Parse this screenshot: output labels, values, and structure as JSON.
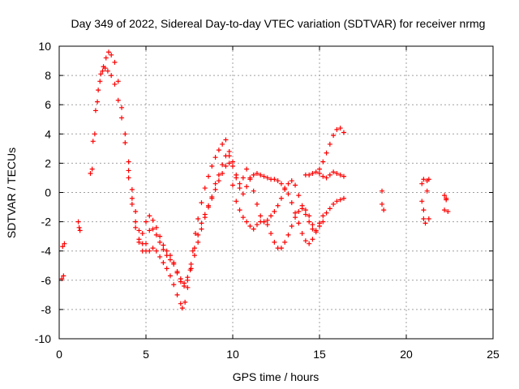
{
  "chart_data": {
    "type": "scatter",
    "title": "Day 349 of 2022, Sidereal Day-to-day VTEC variation (SDTVAR) for receiver nrmg",
    "xlabel": "GPS time / hours",
    "ylabel": "SDTVAR / TECUs",
    "xlim": [
      0,
      25
    ],
    "ylim": [
      -10,
      10
    ],
    "x_ticks": [
      0,
      5,
      10,
      15,
      20,
      25
    ],
    "y_ticks": [
      -10,
      -8,
      -6,
      -4,
      -2,
      0,
      2,
      4,
      6,
      8,
      10
    ],
    "grid": true,
    "marker": "+",
    "series": [
      {
        "name": "main-trace-1",
        "color": "#ff0000",
        "points": [
          [
            1.8,
            1.3
          ],
          [
            1.95,
            3.5
          ],
          [
            2.1,
            5.6
          ],
          [
            2.25,
            7.0
          ],
          [
            2.4,
            8.1
          ],
          [
            2.55,
            8.6
          ],
          [
            2.7,
            9.2
          ],
          [
            2.85,
            9.6
          ],
          [
            3.0,
            9.4
          ],
          [
            3.2,
            8.9
          ],
          [
            3.4,
            7.6
          ],
          [
            3.6,
            5.8
          ],
          [
            3.8,
            4.0
          ],
          [
            4.0,
            2.1
          ],
          [
            4.2,
            0.2
          ],
          [
            4.4,
            -1.3
          ],
          [
            4.6,
            -2.6
          ],
          [
            4.8,
            -3.5
          ],
          [
            5.0,
            -4.0
          ],
          [
            5.2,
            -4.0
          ],
          [
            5.4,
            -3.8
          ],
          [
            5.6,
            -4.0
          ],
          [
            5.8,
            -4.4
          ],
          [
            6.0,
            -4.8
          ],
          [
            6.2,
            -5.2
          ],
          [
            6.4,
            -5.7
          ],
          [
            6.6,
            -6.3
          ],
          [
            6.8,
            -7.0
          ],
          [
            7.0,
            -7.6
          ],
          [
            7.1,
            -7.9
          ],
          [
            7.25,
            -7.5
          ],
          [
            7.4,
            -6.5
          ],
          [
            7.55,
            -5.3
          ],
          [
            7.7,
            -4.0
          ],
          [
            7.85,
            -2.8
          ],
          [
            8.0,
            -1.8
          ],
          [
            8.2,
            -0.7
          ],
          [
            8.4,
            0.3
          ],
          [
            8.6,
            1.1
          ],
          [
            8.8,
            1.8
          ],
          [
            9.0,
            2.4
          ],
          [
            9.2,
            2.9
          ],
          [
            9.4,
            3.3
          ],
          [
            9.6,
            3.6
          ],
          [
            9.8,
            2.0
          ],
          [
            10.0,
            0.5
          ],
          [
            10.2,
            -0.6
          ],
          [
            10.4,
            -1.2
          ],
          [
            10.6,
            -1.7
          ],
          [
            10.8,
            -2.0
          ],
          [
            11.0,
            -2.3
          ],
          [
            11.2,
            -2.5
          ],
          [
            11.4,
            -2.2
          ],
          [
            11.6,
            -2.0
          ],
          [
            11.8,
            -2.0
          ],
          [
            12.0,
            -2.2
          ],
          [
            12.2,
            -2.8
          ],
          [
            12.4,
            -3.4
          ],
          [
            12.6,
            -3.8
          ],
          [
            12.8,
            -3.8
          ],
          [
            13.0,
            -3.4
          ],
          [
            13.2,
            -2.9
          ],
          [
            13.4,
            -2.3
          ],
          [
            13.6,
            -1.7
          ],
          [
            13.8,
            -1.3
          ],
          [
            14.0,
            -1.1
          ],
          [
            14.2,
            -1.2
          ],
          [
            14.4,
            -1.6
          ],
          [
            14.6,
            -2.2
          ],
          [
            14.8,
            -2.6
          ],
          [
            15.0,
            -2.1
          ],
          [
            15.2,
            -1.6
          ],
          [
            15.4,
            -1.4
          ],
          [
            15.6,
            -1.1
          ],
          [
            15.8,
            -0.8
          ],
          [
            16.0,
            -0.6
          ],
          [
            16.2,
            -0.5
          ],
          [
            16.4,
            -0.4
          ]
        ]
      },
      {
        "name": "main-trace-2",
        "color": "#ff0000",
        "points": [
          [
            1.9,
            1.6
          ],
          [
            2.05,
            4.0
          ],
          [
            2.2,
            6.2
          ],
          [
            2.35,
            7.6
          ],
          [
            2.5,
            8.3
          ],
          [
            2.65,
            8.5
          ],
          [
            2.8,
            8.3
          ],
          [
            3.0,
            8.0
          ],
          [
            3.2,
            7.4
          ],
          [
            3.4,
            6.3
          ],
          [
            3.6,
            5.1
          ],
          [
            3.8,
            3.4
          ],
          [
            4.0,
            1.5
          ],
          [
            4.2,
            -0.4
          ],
          [
            4.4,
            -2.0
          ],
          [
            4.6,
            -3.2
          ],
          [
            4.8,
            -4.0
          ],
          [
            5.0,
            -3.5
          ],
          [
            5.2,
            -2.6
          ],
          [
            5.4,
            -2.5
          ],
          [
            5.6,
            -2.9
          ],
          [
            5.8,
            -3.4
          ],
          [
            6.0,
            -3.9
          ],
          [
            6.2,
            -4.3
          ],
          [
            6.4,
            -4.6
          ],
          [
            6.6,
            -4.9
          ],
          [
            6.8,
            -5.4
          ],
          [
            7.0,
            -5.9
          ],
          [
            7.2,
            -6.2
          ],
          [
            7.4,
            -5.8
          ],
          [
            7.6,
            -4.9
          ],
          [
            7.8,
            -3.8
          ],
          [
            8.0,
            -2.9
          ],
          [
            8.2,
            -2.1
          ],
          [
            8.4,
            -1.5
          ],
          [
            8.6,
            -0.9
          ],
          [
            8.8,
            -0.4
          ],
          [
            9.0,
            0.2
          ],
          [
            9.2,
            0.8
          ],
          [
            9.4,
            1.3
          ],
          [
            9.6,
            1.8
          ],
          [
            9.8,
            2.5
          ],
          [
            10.0,
            1.8
          ],
          [
            10.2,
            1.0
          ],
          [
            10.4,
            0.3
          ],
          [
            10.6,
            -0.1
          ],
          [
            10.8,
            0.4
          ],
          [
            11.0,
            0.9
          ],
          [
            11.2,
            1.2
          ],
          [
            11.4,
            1.3
          ],
          [
            11.6,
            1.2
          ],
          [
            11.8,
            1.1
          ],
          [
            12.0,
            1.0
          ],
          [
            12.2,
            0.9
          ],
          [
            12.4,
            0.9
          ],
          [
            12.6,
            0.8
          ],
          [
            12.8,
            0.6
          ],
          [
            13.0,
            0.3
          ],
          [
            13.2,
            -0.1
          ],
          [
            13.4,
            -0.7
          ],
          [
            13.6,
            -1.4
          ],
          [
            13.8,
            -2.1
          ],
          [
            14.0,
            -2.8
          ],
          [
            14.2,
            -3.3
          ],
          [
            14.4,
            -3.5
          ],
          [
            14.6,
            -3.2
          ],
          [
            14.8,
            -2.7
          ],
          [
            15.0,
            -2.3
          ],
          [
            15.2,
            -2.0
          ]
        ]
      },
      {
        "name": "main-trace-3",
        "color": "#ff0000",
        "points": [
          [
            4.0,
            1.0
          ],
          [
            4.2,
            -0.8
          ],
          [
            4.4,
            -2.4
          ],
          [
            4.6,
            -3.4
          ],
          [
            4.8,
            -2.8
          ],
          [
            5.0,
            -2.0
          ],
          [
            5.2,
            -1.6
          ],
          [
            5.4,
            -1.9
          ],
          [
            5.6,
            -2.4
          ],
          [
            5.8,
            -3.0
          ],
          [
            6.0,
            -3.6
          ],
          [
            6.2,
            -4.0
          ],
          [
            6.4,
            -4.3
          ],
          [
            6.6,
            -4.8
          ],
          [
            6.8,
            -5.5
          ],
          [
            7.0,
            -6.1
          ],
          [
            7.2,
            -6.4
          ],
          [
            7.4,
            -6.0
          ],
          [
            7.6,
            -5.2
          ],
          [
            7.8,
            -4.3
          ],
          [
            8.0,
            -3.4
          ],
          [
            8.2,
            -2.5
          ],
          [
            8.4,
            -1.7
          ],
          [
            8.6,
            -1.0
          ],
          [
            8.8,
            -0.3
          ],
          [
            9.0,
            0.6
          ],
          [
            9.2,
            1.2
          ],
          [
            9.4,
            1.9
          ],
          [
            9.6,
            2.5
          ],
          [
            9.8,
            2.8
          ],
          [
            10.0,
            2.1
          ],
          [
            10.2,
            1.2
          ],
          [
            10.4,
            0.6
          ],
          [
            10.6,
            1.0
          ],
          [
            10.8,
            1.6
          ],
          [
            11.0,
            1.0
          ],
          [
            11.2,
            0.1
          ],
          [
            11.4,
            -0.8
          ],
          [
            11.6,
            -1.6
          ],
          [
            11.8,
            -2.0
          ],
          [
            12.0,
            -1.9
          ],
          [
            12.2,
            -1.6
          ],
          [
            12.4,
            -1.3
          ],
          [
            12.6,
            -0.9
          ],
          [
            12.8,
            -0.4
          ],
          [
            13.0,
            0.2
          ],
          [
            13.2,
            0.6
          ],
          [
            13.4,
            0.8
          ],
          [
            13.6,
            0.5
          ],
          [
            13.8,
            -0.2
          ],
          [
            14.0,
            -0.9
          ],
          [
            14.2,
            -1.5
          ],
          [
            14.4,
            -2.0
          ],
          [
            14.6,
            -2.5
          ]
        ]
      },
      {
        "name": "late-traces",
        "color": "#ff0000",
        "points": [
          [
            14.2,
            1.2
          ],
          [
            14.4,
            1.2
          ],
          [
            14.6,
            1.3
          ],
          [
            14.8,
            1.4
          ],
          [
            15.0,
            1.6
          ],
          [
            15.2,
            2.1
          ],
          [
            15.4,
            2.7
          ],
          [
            15.6,
            3.3
          ],
          [
            15.8,
            3.9
          ],
          [
            16.0,
            4.3
          ],
          [
            16.2,
            4.4
          ],
          [
            16.4,
            4.1
          ],
          [
            15.0,
            1.3
          ],
          [
            15.2,
            1.1
          ],
          [
            15.4,
            1.0
          ],
          [
            15.6,
            1.2
          ],
          [
            15.8,
            1.4
          ],
          [
            16.0,
            1.3
          ],
          [
            16.2,
            1.2
          ],
          [
            16.4,
            1.1
          ]
        ]
      },
      {
        "name": "isolated-points",
        "color": "#ff0000",
        "points": [
          [
            0.2,
            -3.7
          ],
          [
            0.3,
            -3.5
          ],
          [
            0.25,
            -5.7
          ],
          [
            0.15,
            -5.9
          ],
          [
            1.1,
            -2.0
          ],
          [
            1.15,
            -2.4
          ],
          [
            1.2,
            -2.6
          ],
          [
            18.6,
            0.1
          ],
          [
            18.6,
            -0.8
          ],
          [
            18.7,
            -1.2
          ],
          [
            20.9,
            0.6
          ],
          [
            21.0,
            0.9
          ],
          [
            21.2,
            0.8
          ],
          [
            21.3,
            0.9
          ],
          [
            20.9,
            -0.6
          ],
          [
            21.0,
            -1.2
          ],
          [
            21.0,
            -1.8
          ],
          [
            21.1,
            -2.1
          ],
          [
            21.3,
            -1.8
          ],
          [
            21.2,
            0.1
          ],
          [
            22.2,
            -0.2
          ],
          [
            22.3,
            -0.5
          ],
          [
            22.2,
            -1.2
          ],
          [
            22.4,
            -1.3
          ],
          [
            22.3,
            -0.4
          ]
        ]
      }
    ]
  }
}
